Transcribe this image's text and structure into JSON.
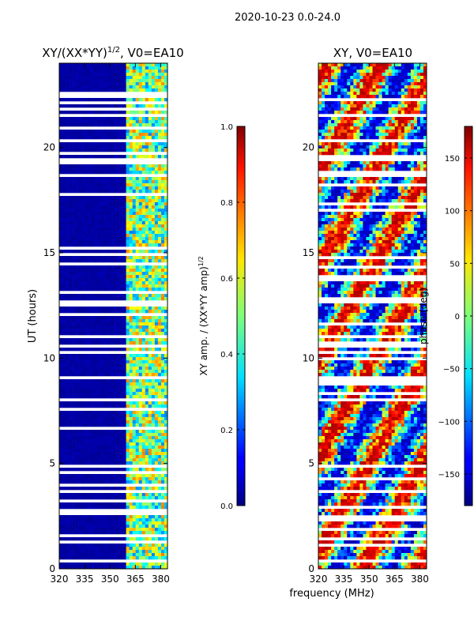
{
  "suptitle": "2020-10-23 0.0-24.0",
  "xlabel": "frequency (MHz)",
  "chart_data": [
    {
      "type": "heatmap",
      "title_main": "XY/(XX*YY)",
      "title_exp": "1/2",
      "title_suffix": ", V0=EA10",
      "ylabel": "UT (hours)",
      "xlim": [
        320,
        384
      ],
      "ylim": [
        0,
        24
      ],
      "xticks": [
        "320",
        "335",
        "350",
        "365",
        "380"
      ],
      "yticks": [
        "0",
        "5",
        "10",
        "15",
        "20"
      ],
      "colorbar": {
        "label_main": "XY amp. / (XX*YY amp)",
        "label_exp": "1/2",
        "range": [
          0.0,
          1.0
        ],
        "ticks": [
          "0.0",
          "0.2",
          "0.4",
          "0.6",
          "0.8",
          "1.0"
        ],
        "colormap": "jet"
      }
    },
    {
      "type": "heatmap",
      "title": "XY, V0=EA10",
      "xlim": [
        320,
        384
      ],
      "ylim": [
        0,
        24
      ],
      "xticks": [
        "320",
        "335",
        "350",
        "365",
        "380"
      ],
      "yticks": [
        "0",
        "5",
        "10",
        "15",
        "20"
      ],
      "colorbar": {
        "label": "phase (deg)",
        "range": [
          -180,
          180
        ],
        "ticks": [
          "−150",
          "−100",
          "−50",
          "0",
          "50",
          "100",
          "150"
        ],
        "colormap": "jet"
      }
    }
  ]
}
